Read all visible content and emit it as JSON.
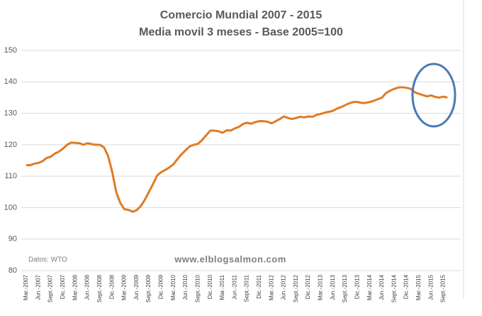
{
  "chart_data": {
    "type": "line",
    "title": "Comercio Mundial 2007 - 2015",
    "subtitle": "Media movil 3 meses - Base 2005=100",
    "annotations": [
      "Datos: WTO",
      "www.elblogsalmon.com"
    ],
    "categories": [
      "Mar.-2007",
      null,
      null,
      "Jun.-2007",
      null,
      null,
      "Sept.-2007",
      null,
      null,
      "Dic.-2007",
      null,
      null,
      "Mar.-2008",
      null,
      null,
      "Jun.-2008",
      null,
      null,
      "Sept.-2008",
      null,
      null,
      "Dic.-2008",
      null,
      null,
      "Mar.-2009",
      null,
      null,
      "Jun.-2009",
      null,
      null,
      "Sept.-2009",
      null,
      null,
      "Dic.-2009",
      null,
      null,
      "Mar.-2010",
      null,
      null,
      "Jun.-2010",
      null,
      null,
      "Sept.-2010",
      null,
      null,
      "Dic.-2010",
      null,
      null,
      "Mar.-2011",
      null,
      null,
      "Jun.-2011",
      null,
      null,
      "Sept.-2011",
      null,
      null,
      "Dic.-2011",
      null,
      null,
      "Mar.-2012",
      null,
      null,
      "Jun.-2012",
      null,
      null,
      "Sept.-2012",
      null,
      null,
      "Dic.-2012",
      null,
      null,
      "Mar.-2013",
      null,
      null,
      "Jun.-2013",
      null,
      null,
      "Sept.-2013",
      null,
      null,
      "Dic.-2013",
      null,
      null,
      "Mar.-2014",
      null,
      null,
      "Jun.-2014",
      null,
      null,
      "Sept.-2014",
      null,
      null,
      "Dic.-2014",
      null,
      null,
      "Mar.-2015",
      null,
      null,
      "Jun.-2015",
      null,
      null,
      "Sept.-2015",
      null
    ],
    "series": [
      {
        "name": "Comercio Mundial",
        "color": "#e07b24",
        "values": [
          113.5,
          113.5,
          114,
          114.2,
          114.8,
          115.8,
          116.2,
          117.2,
          117.8,
          118.8,
          120,
          120.7,
          120.6,
          120.5,
          120,
          120.5,
          120.2,
          120,
          120,
          119.2,
          116.5,
          111.5,
          105,
          101.5,
          99.5,
          99.3,
          98.7,
          99.2,
          100.5,
          102.5,
          105,
          107.5,
          110.2,
          111.3,
          112,
          112.8,
          113.8,
          115.5,
          117,
          118.3,
          119.5,
          120,
          120.3,
          121.5,
          123,
          124.5,
          124.5,
          124.3,
          123.8,
          124.6,
          124.5,
          125.2,
          125.7,
          126.6,
          127,
          126.7,
          127.2,
          127.5,
          127.5,
          127.3,
          126.8,
          127.5,
          128.2,
          129,
          128.5,
          128.2,
          128.5,
          128.9,
          128.7,
          129,
          128.9,
          129.5,
          129.8,
          130.2,
          130.5,
          130.8,
          131.5,
          132,
          132.6,
          133.2,
          133.6,
          133.6,
          133.3,
          133.3,
          133.6,
          134,
          134.5,
          135,
          136.5,
          137.2,
          137.8,
          138.2,
          138.3,
          138.1,
          137.8,
          136.7,
          136.2,
          135.8,
          135.4,
          135.7,
          135.2,
          135,
          135.3,
          135
        ]
      }
    ],
    "ylim": [
      80,
      150
    ],
    "yticks": [
      80,
      90,
      100,
      110,
      120,
      130,
      140,
      150
    ],
    "grid": true
  }
}
